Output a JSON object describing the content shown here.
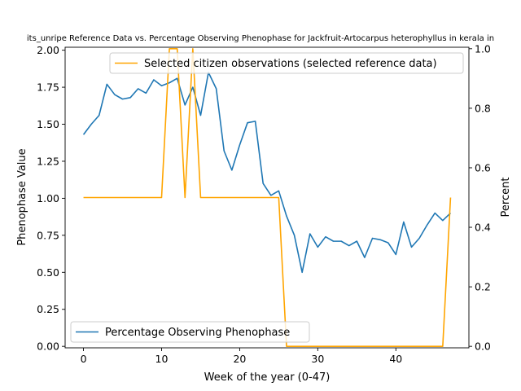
{
  "chart_data": {
    "type": "line",
    "title": "its_unripe Reference Data vs. Percentage Observing Phenophase for Jackfruit-Artocarpus heterophyllus in kerala in",
    "xlabel": "Week of the year (0-47)",
    "ylabel_left": "Phenophase Value",
    "ylabel_right": "Percent",
    "xlim": [
      -2.35,
      49.35
    ],
    "ylim_left": [
      -0.01,
      2.02
    ],
    "ylim_right": [
      -0.005,
      1.005
    ],
    "xticks": [
      0,
      10,
      20,
      30,
      40
    ],
    "yticks_left": [
      "0.00",
      "0.25",
      "0.50",
      "0.75",
      "1.00",
      "1.25",
      "1.50",
      "1.75",
      "2.00"
    ],
    "yticks_right": [
      "0.0",
      "0.2",
      "0.4",
      "0.6",
      "0.8",
      "1.0"
    ],
    "legend_left": {
      "placement": "lower-left",
      "label": "Percentage Observing Phenophase"
    },
    "legend_right": {
      "placement": "upper-right",
      "label": "Selected citizen observations (selected reference data)"
    },
    "series": [
      {
        "name": "Percentage Observing Phenophase",
        "axis": "left",
        "color": "#1f77b4",
        "x": [
          0,
          1,
          2,
          3,
          4,
          5,
          6,
          7,
          8,
          9,
          10,
          11,
          12,
          13,
          14,
          15,
          16,
          17,
          18,
          19,
          20,
          21,
          22,
          23,
          24,
          25,
          26,
          27,
          28,
          29,
          30,
          31,
          32,
          33,
          34,
          35,
          36,
          37,
          38,
          39,
          40,
          41,
          42,
          43,
          44,
          45,
          46,
          47
        ],
        "y": [
          1.43,
          1.5,
          1.56,
          1.77,
          1.7,
          1.67,
          1.68,
          1.74,
          1.71,
          1.8,
          1.76,
          1.78,
          1.81,
          1.63,
          1.75,
          1.56,
          1.85,
          1.74,
          1.32,
          1.19,
          1.36,
          1.51,
          1.52,
          1.1,
          1.02,
          1.05,
          0.88,
          0.75,
          0.5,
          0.76,
          0.67,
          0.74,
          0.71,
          0.71,
          0.68,
          0.71,
          0.6,
          0.73,
          0.72,
          0.7,
          0.62,
          0.84,
          0.67,
          0.73,
          0.82,
          0.9,
          0.85,
          0.9
        ]
      },
      {
        "name": "Selected citizen observations (selected reference data)",
        "axis": "right",
        "color": "#ffa500",
        "x": [
          0,
          1,
          2,
          3,
          4,
          5,
          6,
          7,
          8,
          9,
          10,
          11,
          12,
          13,
          14,
          15,
          16,
          17,
          18,
          19,
          20,
          21,
          22,
          23,
          24,
          25,
          26,
          27,
          28,
          29,
          30,
          31,
          32,
          33,
          34,
          35,
          36,
          37,
          38,
          39,
          40,
          41,
          42,
          43,
          44,
          45,
          46,
          47
        ],
        "y": [
          0.5,
          0.5,
          0.5,
          0.5,
          0.5,
          0.5,
          0.5,
          0.5,
          0.5,
          0.5,
          0.5,
          1.0,
          1.0,
          0.5,
          1.0,
          0.5,
          0.5,
          0.5,
          0.5,
          0.5,
          0.5,
          0.5,
          0.5,
          0.5,
          0.5,
          0.5,
          0,
          0,
          0,
          0,
          0,
          0,
          0,
          0,
          0,
          0,
          0,
          0,
          0,
          0,
          0,
          0,
          0,
          0,
          0,
          0,
          0,
          0.5
        ]
      }
    ]
  }
}
